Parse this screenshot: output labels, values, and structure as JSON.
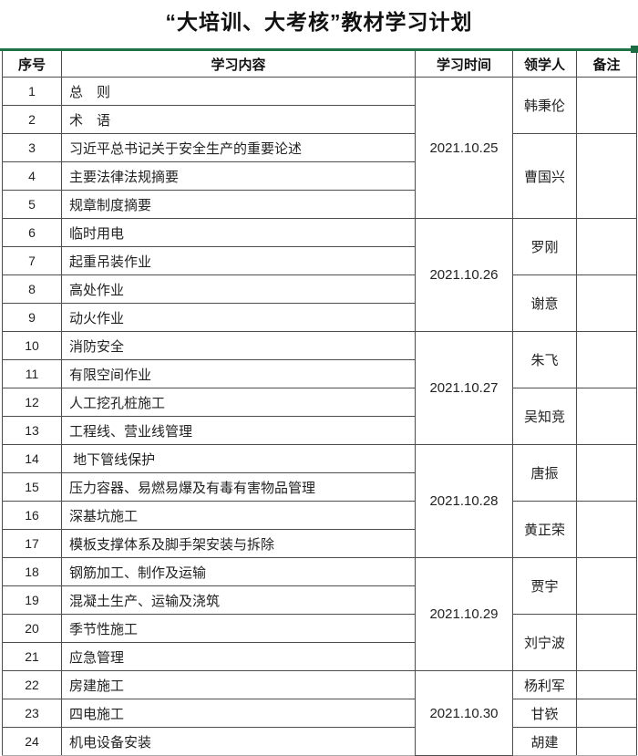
{
  "title": "“大培训、大考核”教材学习计划",
  "colors": {
    "accent_green": "#1f7246",
    "grid_border": "#4d4d4d",
    "text": "#1a1a1a"
  },
  "table": {
    "headers": {
      "no": "序号",
      "content": "学习内容",
      "time": "学习时间",
      "leader": "领学人",
      "remark": "备注"
    },
    "rows": [
      {
        "no": "1",
        "content": "总　则"
      },
      {
        "no": "2",
        "content": "术　语"
      },
      {
        "no": "3",
        "content": "习近平总书记关于安全生产的重要论述"
      },
      {
        "no": "4",
        "content": "主要法律法规摘要"
      },
      {
        "no": "5",
        "content": "规章制度摘要"
      },
      {
        "no": "6",
        "content": "临时用电"
      },
      {
        "no": "7",
        "content": "起重吊装作业"
      },
      {
        "no": "8",
        "content": "高处作业"
      },
      {
        "no": "9",
        "content": "动火作业"
      },
      {
        "no": "10",
        "content": "消防安全"
      },
      {
        "no": "11",
        "content": "有限空间作业"
      },
      {
        "no": "12",
        "content": "人工挖孔桩施工"
      },
      {
        "no": "13",
        "content": "工程线、营业线管理"
      },
      {
        "no": "14",
        "content": " 地下管线保护"
      },
      {
        "no": "15",
        "content": "压力容器、易燃易爆及有毒有害物品管理"
      },
      {
        "no": "16",
        "content": "深基坑施工"
      },
      {
        "no": "17",
        "content": "模板支撑体系及脚手架安装与拆除"
      },
      {
        "no": "18",
        "content": "钢筋加工、制作及运输"
      },
      {
        "no": "19",
        "content": "混凝土生产、运输及浇筑"
      },
      {
        "no": "20",
        "content": "季节性施工"
      },
      {
        "no": "21",
        "content": "应急管理"
      },
      {
        "no": "22",
        "content": "房建施工"
      },
      {
        "no": "23",
        "content": "四电施工"
      },
      {
        "no": "24",
        "content": "机电设备安装"
      }
    ],
    "times": [
      {
        "label": "2021.10.25",
        "rows": "1-5"
      },
      {
        "label": "2021.10.26",
        "rows": "6-9"
      },
      {
        "label": "2021.10.27",
        "rows": "10-13"
      },
      {
        "label": "2021.10.28",
        "rows": "14-17"
      },
      {
        "label": "2021.10.29",
        "rows": "18-21"
      },
      {
        "label": "2021.10.30",
        "rows": "22-24"
      }
    ],
    "leaders": [
      {
        "name": "韩秉伦",
        "rows": "1-2"
      },
      {
        "name": "曹国兴",
        "rows": "3-5"
      },
      {
        "name": "罗刚",
        "rows": "6-7"
      },
      {
        "name": "谢意",
        "rows": "8-9"
      },
      {
        "name": "朱飞",
        "rows": "10-11"
      },
      {
        "name": "吴知竞",
        "rows": "12-13"
      },
      {
        "name": "唐振",
        "rows": "14-15"
      },
      {
        "name": "黄正荣",
        "rows": "16-17"
      },
      {
        "name": "贾宇",
        "rows": "18-19"
      },
      {
        "name": "刘宁波",
        "rows": "20-21"
      },
      {
        "name": "杨利军",
        "rows": "22"
      },
      {
        "name": "甘嵚",
        "rows": "23"
      },
      {
        "name": "胡建",
        "rows": "24"
      }
    ],
    "remarks": [
      "",
      "",
      "",
      "",
      "",
      "",
      "",
      "",
      "",
      "",
      "",
      "",
      ""
    ]
  }
}
